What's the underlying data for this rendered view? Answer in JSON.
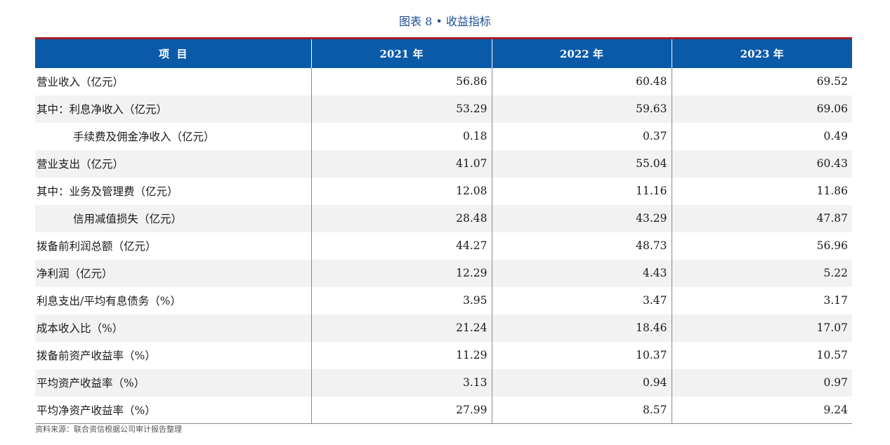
{
  "title": "图表 8 • 收益指标",
  "header": [
    "项  目",
    "2021 年",
    "2022 年",
    "2023 年"
  ],
  "rows": [
    {
      "label": "营业收入（亿元）",
      "v": [
        "56.86",
        "60.48",
        "69.52"
      ]
    },
    {
      "label": "其中：利息净收入（亿元）",
      "v": [
        "53.29",
        "59.63",
        "69.06"
      ]
    },
    {
      "label": "手续费及佣金净收入（亿元）",
      "v": [
        "0.18",
        "0.37",
        "0.49"
      ]
    },
    {
      "label": "营业支出（亿元）",
      "v": [
        "41.07",
        "55.04",
        "60.43"
      ]
    },
    {
      "label": "其中：业务及管理费（亿元）",
      "v": [
        "12.08",
        "11.16",
        "11.86"
      ]
    },
    {
      "label": "信用减值损失（亿元）",
      "v": [
        "28.48",
        "43.29",
        "47.87"
      ]
    },
    {
      "label": "拨备前利润总额（亿元）",
      "v": [
        "44.27",
        "48.73",
        "56.96"
      ]
    },
    {
      "label": "净利润（亿元）",
      "v": [
        "12.29",
        "4.43",
        "5.22"
      ]
    },
    {
      "label": "利息支出/平均有息债务（%）",
      "v": [
        "3.95",
        "3.47",
        "3.17"
      ]
    },
    {
      "label": "成本收入比（%）",
      "v": [
        "21.24",
        "18.46",
        "17.07"
      ]
    },
    {
      "label": "拨备前资产收益率（%）",
      "v": [
        "11.29",
        "10.37",
        "10.57"
      ]
    },
    {
      "label": "平均资产收益率（%）",
      "v": [
        "3.13",
        "0.94",
        "0.97"
      ]
    },
    {
      "label": "平均净资产收益率（%）",
      "v": [
        "27.99",
        "8.57",
        "9.24"
      ]
    }
  ],
  "source": "资料来源：联合资信根据公司审计报告整理",
  "colors": {
    "header_bg": "#0a5aa8",
    "header_top_rule": "#9c1f2e",
    "title": "#1f4e96",
    "row_shade": "#f2f2f2"
  }
}
